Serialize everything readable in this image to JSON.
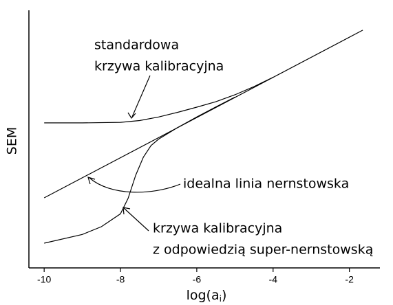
{
  "chart_data": {
    "type": "line",
    "ylabel": "SEM",
    "xlabel": {
      "text": "log(a",
      "sub": "i",
      "end": ")"
    },
    "xlim": [
      -10.4,
      -1.2
    ],
    "xticks": [
      -10,
      -8,
      -6,
      -4,
      -2
    ],
    "ylim": [
      0,
      100
    ],
    "series": [
      {
        "color": "#000000",
        "x": [
          -10,
          -1.65
        ],
        "values": [
          27.2,
          92.3
        ]
      },
      {
        "color": "#000000",
        "x": [
          -10,
          -9,
          -8,
          -7.5,
          -7,
          -6.5,
          -6,
          -5.5,
          -5,
          -4.5,
          -4
        ],
        "values": [
          56.3,
          56.3,
          56.5,
          57.2,
          58.6,
          60.4,
          62.4,
          64.5,
          67.2,
          70.4,
          74.0
        ]
      },
      {
        "color": "#000000",
        "x": [
          -10,
          -9,
          -8.5,
          -8,
          -7.8,
          -7.6,
          -7.4,
          -7.2,
          -7,
          -6.5,
          -6,
          -5.5,
          -5
        ],
        "values": [
          9.6,
          13,
          16,
          21,
          27,
          36,
          43,
          47.5,
          50,
          54.5,
          58.6,
          62.5,
          66.3
        ]
      }
    ],
    "annotations": [
      {
        "lines": [
          "standardowa",
          "krzywa kalibracyjna"
        ]
      },
      {
        "lines": [
          "idealna linia nernstowska"
        ]
      },
      {
        "lines": [
          "krzywa kalibracyjna",
          "z odpowiedzią super-nernstowską"
        ]
      }
    ]
  }
}
